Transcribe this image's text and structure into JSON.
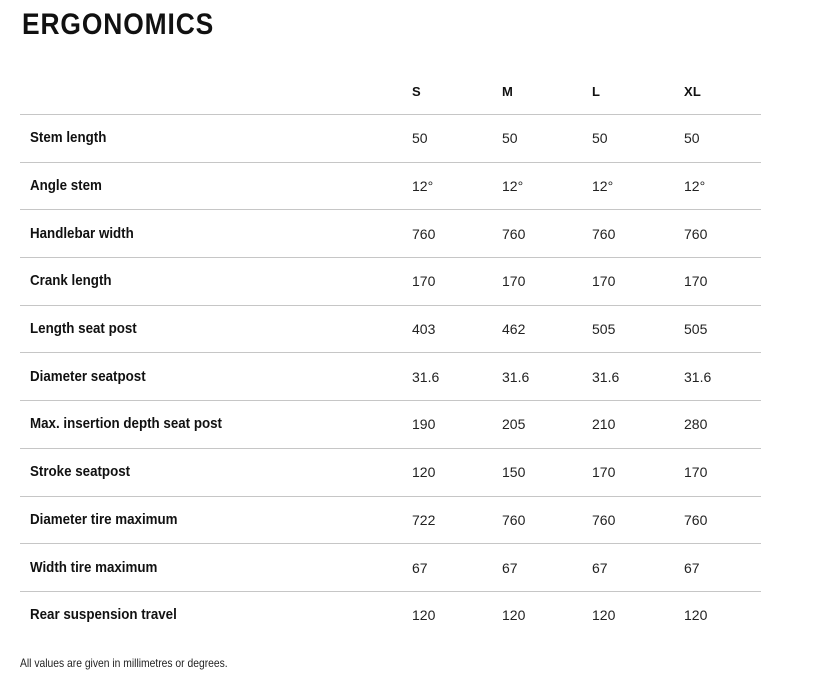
{
  "page": {
    "title": "ERGONOMICS",
    "footnote": "All values are given in millimetres or degrees."
  },
  "table": {
    "size_columns": [
      "S",
      "M",
      "L",
      "XL"
    ],
    "rows": [
      {
        "label": "Stem length",
        "values": [
          "50",
          "50",
          "50",
          "50"
        ]
      },
      {
        "label": "Angle stem",
        "values": [
          "12°",
          "12°",
          "12°",
          "12°"
        ]
      },
      {
        "label": "Handlebar width",
        "values": [
          "760",
          "760",
          "760",
          "760"
        ]
      },
      {
        "label": "Crank length",
        "values": [
          "170",
          "170",
          "170",
          "170"
        ]
      },
      {
        "label": "Length seat post",
        "values": [
          "403",
          "462",
          "505",
          "505"
        ]
      },
      {
        "label": "Diameter seatpost",
        "values": [
          "31.6",
          "31.6",
          "31.6",
          "31.6"
        ]
      },
      {
        "label": "Max. insertion depth seat post",
        "values": [
          "190",
          "205",
          "210",
          "280"
        ]
      },
      {
        "label": "Stroke seatpost",
        "values": [
          "120",
          "150",
          "170",
          "170"
        ]
      },
      {
        "label": "Diameter tire maximum",
        "values": [
          "722",
          "760",
          "760",
          "760"
        ]
      },
      {
        "label": "Width tire maximum",
        "values": [
          "67",
          "67",
          "67",
          "67"
        ]
      },
      {
        "label": "Rear suspension travel",
        "values": [
          "120",
          "120",
          "120",
          "120"
        ]
      }
    ]
  },
  "colors": {
    "divider": "#c6c6c6",
    "heading_text": "#111111",
    "value_text": "#222222",
    "background": "#ffffff"
  }
}
